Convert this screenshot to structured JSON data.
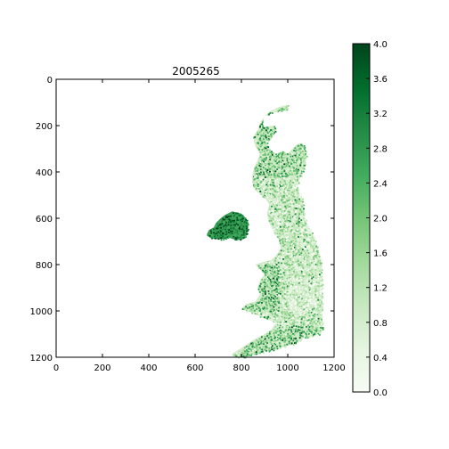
{
  "chart_data": [
    {
      "type": "heatmap",
      "title": "2005265",
      "xlabel": "",
      "ylabel": "",
      "xlim": [
        0,
        1200
      ],
      "ylim": [
        1200,
        0
      ],
      "y_axis_inverted": true,
      "xticks": [
        0,
        200,
        400,
        600,
        800,
        1000,
        1200
      ],
      "yticks": [
        0,
        200,
        400,
        600,
        800,
        1000,
        1200
      ],
      "colormap": "Greens",
      "cmap_colors": [
        "#f7fcf5",
        "#e5f5e0",
        "#c7e9c0",
        "#a1d99b",
        "#74c476",
        "#41ab5d",
        "#238b45",
        "#006d2c",
        "#00441b"
      ],
      "grid": false,
      "regions": [
        {
          "name": "",
          "x_range": [
            750,
            1150
          ],
          "y_range": [
            110,
            1190
          ],
          "dominant_value_range": [
            0.3,
            2.8
          ]
        },
        {
          "name": "",
          "x_range": [
            645,
            830
          ],
          "y_range": [
            570,
            690
          ],
          "dominant_value_range": [
            3.0,
            4.0
          ]
        }
      ]
    },
    {
      "type": "colorbar",
      "vmin": 0.0,
      "vmax": 4.0,
      "tick_labels": [
        "0.0",
        "0.4",
        "0.8",
        "1.2",
        "1.6",
        "2.0",
        "2.4",
        "2.8",
        "3.2",
        "3.6",
        "4.0"
      ]
    }
  ]
}
